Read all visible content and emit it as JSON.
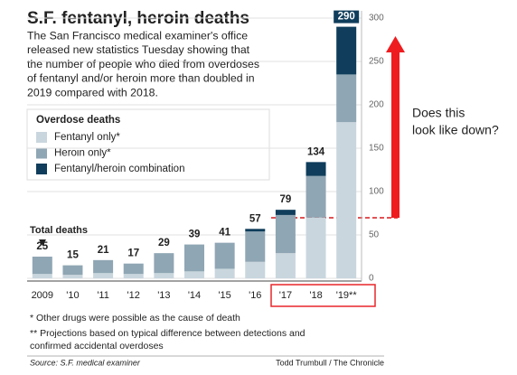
{
  "chart_data": {
    "type": "stacked_bar",
    "title": "S.F. fentanyl, heroin deaths",
    "subtitle": [
      "The San Francisco medical examiner's office",
      "released new statistics Tuesday showing that",
      "the number of people who died from overdoses",
      "of fentanyl and/or heroin more than doubled in",
      "2019 compared with 2018."
    ],
    "legend_title": "Overdose deaths",
    "totals_label": "Total deaths",
    "categories": [
      "2009",
      "'10",
      "'11",
      "'12",
      "'13",
      "'14",
      "'15",
      "'16",
      "'17",
      "'18",
      "'19**"
    ],
    "series": [
      {
        "name": "Fentanyl only*",
        "color": "#c9d6de",
        "values": [
          5,
          4,
          6,
          5,
          6,
          8,
          11,
          19,
          29,
          70,
          180
        ]
      },
      {
        "name": "Heroin only*",
        "color": "#8fa6b4",
        "values": [
          20,
          11,
          15,
          12,
          23,
          31,
          30,
          35,
          44,
          48,
          55
        ]
      },
      {
        "name": "Fentanyl/heroin combination",
        "color": "#0f3d5b",
        "values": [
          0,
          0,
          0,
          0,
          0,
          0,
          0,
          3,
          6,
          16,
          55
        ]
      }
    ],
    "totals": [
      25,
      15,
      21,
      17,
      29,
      39,
      41,
      57,
      79,
      134,
      290
    ],
    "ylim": [
      0,
      300
    ],
    "yticks": [
      0,
      50,
      100,
      150,
      200,
      250,
      300
    ],
    "grid": true,
    "footnotes": [
      "* Other drugs were possible as the cause of death",
      "** Projections based on typical difference between detections and",
      "confirmed accidental overdoses"
    ],
    "source": "Source: S.F. medical examiner",
    "credit": "Todd Trumbull / The Chronicle",
    "annotation": [
      "Does this",
      "look like down?"
    ]
  }
}
